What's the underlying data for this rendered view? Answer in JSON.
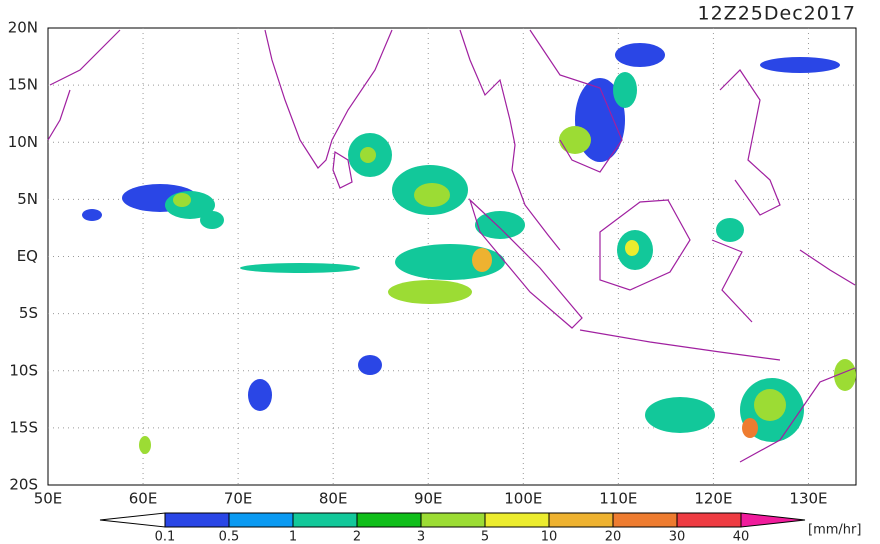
{
  "header": {
    "title": "12Z25Dec2017"
  },
  "map": {
    "lat_labels": [
      "20N",
      "15N",
      "10N",
      "5N",
      "EQ",
      "5S",
      "10S",
      "15S",
      "20S"
    ],
    "lon_labels": [
      "50E",
      "60E",
      "70E",
      "80E",
      "90E",
      "100E",
      "110E",
      "120E",
      "130E"
    ]
  },
  "legend": {
    "labels": [
      "0.1",
      "0.5",
      "1",
      "2",
      "3",
      "5",
      "10",
      "20",
      "30",
      "40"
    ],
    "colors": [
      "#ffffff",
      "#2a46e6",
      "#0a9af2",
      "#12c89a",
      "#10be1a",
      "#9cdc34",
      "#ecec2e",
      "#eeb230",
      "#ee7c30",
      "#ee3c42",
      "#f01c9c"
    ],
    "unit": "[mm/hr]"
  }
}
